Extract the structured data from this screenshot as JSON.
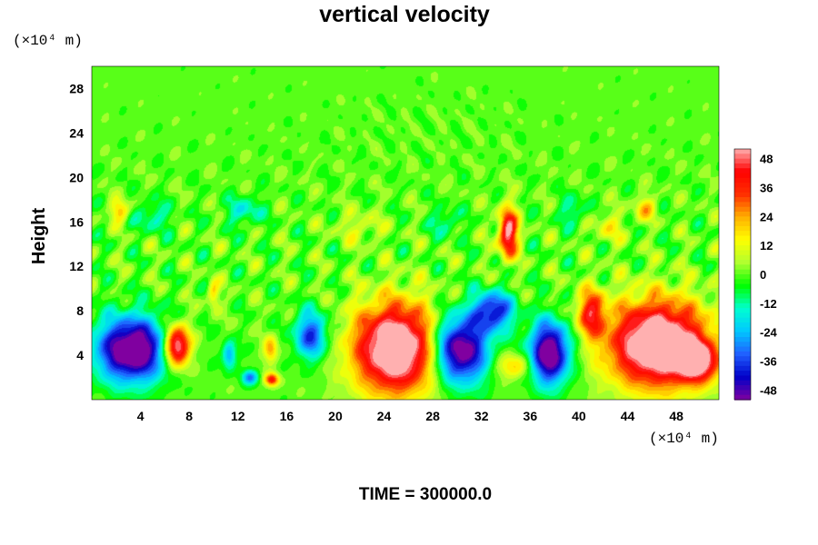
{
  "chart_data": {
    "type": "heatmap",
    "title": "vertical velocity",
    "ylabel": "Height",
    "y_unit": "(×10⁴ m)",
    "x_unit": "(×10⁴ m)",
    "footer": "TIME = 300000.0",
    "xlim": [
      0,
      51.5
    ],
    "ylim": [
      0,
      30
    ],
    "x_ticks": [
      4,
      8,
      12,
      16,
      20,
      24,
      28,
      32,
      36,
      40,
      44,
      48
    ],
    "y_ticks": [
      4,
      8,
      12,
      16,
      20,
      24,
      28
    ],
    "colorbar": {
      "min": -52,
      "max": 52,
      "ticks": [
        48,
        36,
        24,
        12,
        0,
        -12,
        -24,
        -36,
        -48
      ],
      "colors": [
        "#8000a0",
        "#0000c8",
        "#2060ff",
        "#00c8ff",
        "#00ffd0",
        "#00ff00",
        "#b0ff30",
        "#ffff00",
        "#ffb000",
        "#ff3000",
        "#ff0000",
        "#ffb0b0"
      ]
    },
    "features": [
      {
        "name": "downdraft",
        "x": 3.3,
        "y": 4.5,
        "rx": 3.0,
        "ry": 3.0,
        "w": -65
      },
      {
        "name": "updraft",
        "x": 7.0,
        "y": 4.8,
        "rx": 1.1,
        "ry": 1.9,
        "w": 65
      },
      {
        "name": "downdraft",
        "x": 11.3,
        "y": 4.0,
        "rx": 0.6,
        "ry": 1.3,
        "w": -28
      },
      {
        "name": "downdraft",
        "x": 13.0,
        "y": 2.0,
        "rx": 0.7,
        "ry": 0.7,
        "w": -30
      },
      {
        "name": "updraft",
        "x": 14.7,
        "y": 4.5,
        "rx": 0.6,
        "ry": 1.2,
        "w": 25
      },
      {
        "name": "updraft",
        "x": 14.8,
        "y": 1.8,
        "rx": 0.6,
        "ry": 0.6,
        "w": 40
      },
      {
        "name": "downdraft",
        "x": 18.0,
        "y": 5.8,
        "rx": 1.4,
        "ry": 2.2,
        "w": -38
      },
      {
        "name": "updraft",
        "x": 25.0,
        "y": 4.6,
        "rx": 3.6,
        "ry": 4.2,
        "w": 70
      },
      {
        "name": "downdraft",
        "x": 30.2,
        "y": 4.5,
        "rx": 2.4,
        "ry": 3.2,
        "w": -62
      },
      {
        "name": "downdraft",
        "x": 33.0,
        "y": 8.0,
        "rx": 1.7,
        "ry": 1.8,
        "w": -42
      },
      {
        "name": "downdraft",
        "x": 37.6,
        "y": 4.2,
        "rx": 1.7,
        "ry": 2.9,
        "w": -62
      },
      {
        "name": "updraft",
        "x": 34.6,
        "y": 3.0,
        "rx": 1.5,
        "ry": 1.2,
        "w": 22
      },
      {
        "name": "updraft",
        "x": 34.2,
        "y": 15.0,
        "rx": 0.8,
        "ry": 2.3,
        "w": 55
      },
      {
        "name": "updraft",
        "x": 41.0,
        "y": 7.8,
        "rx": 1.2,
        "ry": 2.2,
        "w": 38
      },
      {
        "name": "updraft",
        "x": 46.5,
        "y": 5.0,
        "rx": 4.2,
        "ry": 4.0,
        "w": 72
      },
      {
        "name": "updraft",
        "x": 49.8,
        "y": 3.4,
        "rx": 1.7,
        "ry": 1.8,
        "w": 45
      },
      {
        "name": "updraft",
        "x": 2.3,
        "y": 17.0,
        "rx": 0.8,
        "ry": 1.0,
        "w": 22
      },
      {
        "name": "updraft",
        "x": 45.5,
        "y": 17.2,
        "rx": 0.9,
        "ry": 1.1,
        "w": 20
      },
      {
        "name": "updraft",
        "x": 10.0,
        "y": 9.5,
        "rx": 0.5,
        "ry": 1.3,
        "w": 20
      },
      {
        "name": "downdraft",
        "x": 5.0,
        "y": 16.5,
        "rx": 1.5,
        "ry": 1.4,
        "w": -15
      },
      {
        "name": "downdraft",
        "x": 12.5,
        "y": 17.0,
        "rx": 1.6,
        "ry": 1.4,
        "w": -16
      },
      {
        "name": "downdraft",
        "x": 29.0,
        "y": 16.0,
        "rx": 1.2,
        "ry": 1.3,
        "w": -14
      },
      {
        "name": "downdraft",
        "x": 39.5,
        "y": 17.0,
        "rx": 1.2,
        "ry": 1.4,
        "w": -13
      },
      {
        "name": "updraft",
        "x": 22.0,
        "y": 15.5,
        "rx": 2.0,
        "ry": 1.5,
        "w": 10
      },
      {
        "name": "updraft",
        "x": 42.5,
        "y": 15.5,
        "rx": 1.5,
        "ry": 1.5,
        "w": 12
      }
    ]
  }
}
